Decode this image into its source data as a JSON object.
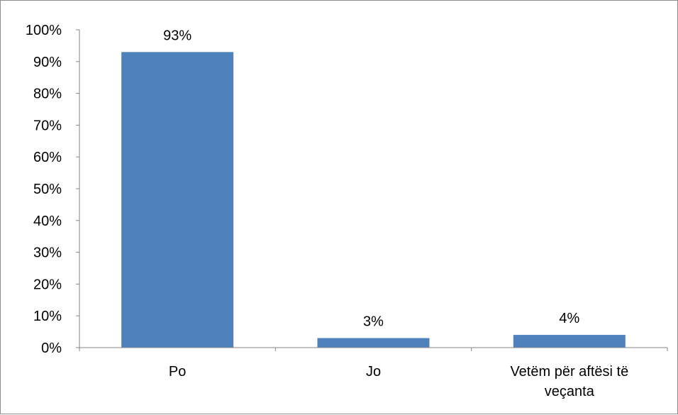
{
  "chart_data": {
    "type": "bar",
    "categories": [
      [
        "Po"
      ],
      [
        "Jo"
      ],
      [
        "Vetëm për aftësi të",
        "veçanta"
      ]
    ],
    "values": [
      93,
      3,
      4
    ],
    "data_labels": [
      "93%",
      "3%",
      "4%"
    ],
    "y_ticks": [
      "0%",
      "10%",
      "20%",
      "30%",
      "40%",
      "50%",
      "60%",
      "70%",
      "80%",
      "90%",
      "100%"
    ],
    "ylim": [
      0,
      100
    ],
    "bar_color": "#4f81bd",
    "axis_color": "#868686",
    "grid": false,
    "legend": "none"
  }
}
